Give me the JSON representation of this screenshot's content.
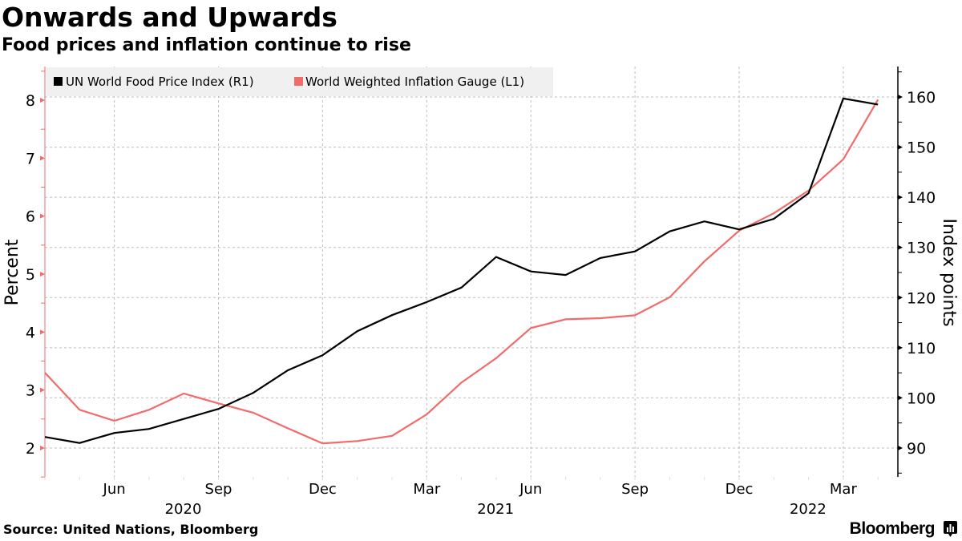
{
  "header": {
    "title": "Onwards and Upwards",
    "subtitle": "Food prices and inflation continue to rise"
  },
  "footer": {
    "source": "Source: United Nations, Bloomberg",
    "brand": "Bloomberg",
    "brand_icon": "bloomberg-terminal-icon"
  },
  "colors": {
    "food_index": "#000000",
    "inflation": "#f26b6b",
    "grid": "#bdbdbd",
    "legend_bg": "#f0f0f0"
  },
  "chart_data": {
    "type": "line",
    "title": "Onwards and Upwards",
    "subtitle": "Food prices and inflation continue to rise",
    "x": [
      "2020-04",
      "2020-05",
      "2020-06",
      "2020-07",
      "2020-08",
      "2020-09",
      "2020-10",
      "2020-11",
      "2020-12",
      "2021-01",
      "2021-02",
      "2021-03",
      "2021-04",
      "2021-05",
      "2021-06",
      "2021-07",
      "2021-08",
      "2021-09",
      "2021-10",
      "2021-11",
      "2021-12",
      "2022-01",
      "2022-02",
      "2022-03",
      "2022-04"
    ],
    "x_ticks": [
      {
        "month": "2020-06",
        "label": "Jun"
      },
      {
        "month": "2020-09",
        "label": "Sep"
      },
      {
        "month": "2020-12",
        "label": "Dec"
      },
      {
        "month": "2021-03",
        "label": "Mar"
      },
      {
        "month": "2021-06",
        "label": "Jun"
      },
      {
        "month": "2021-09",
        "label": "Sep"
      },
      {
        "month": "2021-12",
        "label": "Dec"
      },
      {
        "month": "2022-03",
        "label": "Mar"
      }
    ],
    "year_labels": [
      {
        "month": "2020-09",
        "label": "2020"
      },
      {
        "month": "2021-06",
        "label": "2021"
      },
      {
        "month": "2022-03",
        "label": "2022"
      }
    ],
    "series": [
      {
        "name": "UN World Food Price Index (R1)",
        "axis": "right",
        "color": "#000000",
        "values": [
          92.2,
          91.0,
          93.0,
          93.8,
          95.8,
          97.8,
          101.0,
          105.5,
          108.5,
          113.3,
          116.5,
          119.1,
          122.0,
          128.1,
          125.2,
          124.5,
          127.9,
          129.2,
          133.2,
          135.2,
          133.6,
          135.7,
          140.8,
          159.7,
          158.5
        ]
      },
      {
        "name": "World Weighted Inflation Gauge (L1)",
        "axis": "left",
        "color": "#f26b6b",
        "values": [
          3.3,
          2.66,
          2.47,
          2.66,
          2.94,
          2.77,
          2.61,
          2.34,
          2.08,
          2.12,
          2.21,
          2.58,
          3.13,
          3.55,
          4.07,
          4.22,
          4.24,
          4.29,
          4.6,
          5.22,
          5.75,
          6.05,
          6.44,
          6.98,
          8.01
        ]
      }
    ],
    "left_axis": {
      "label": "Percent",
      "ticks": [
        2,
        3,
        4,
        5,
        6,
        7,
        8
      ],
      "ylim": [
        1.5,
        8.5
      ]
    },
    "right_axis": {
      "label": "Index points",
      "ticks": [
        90,
        100,
        110,
        120,
        130,
        140,
        150,
        160
      ],
      "ylim": [
        85,
        165
      ]
    },
    "grid": true,
    "legend_position": "top-left"
  }
}
